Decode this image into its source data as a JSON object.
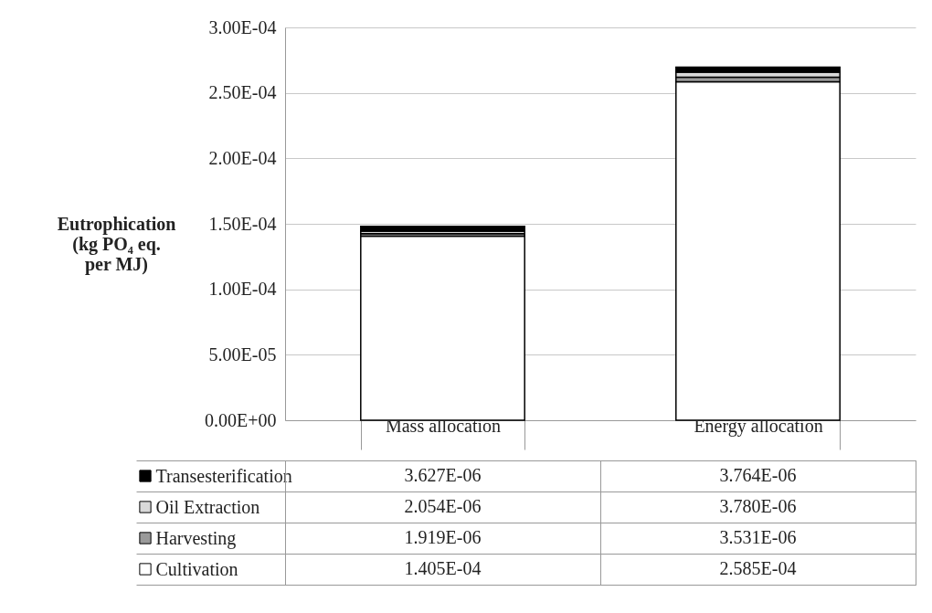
{
  "chart_data": {
    "type": "bar",
    "stacked": true,
    "ylabel": "Eutrophication\n(kg PO₄ eq.\nper MJ)",
    "categories": [
      "Mass allocation",
      "Energy allocation"
    ],
    "series": [
      {
        "name": "Cultivation",
        "color": "#ffffff",
        "values": [
          0.0001405,
          0.0002585
        ],
        "value_labels": [
          "1.405E-04",
          "2.585E-04"
        ]
      },
      {
        "name": "Harvesting",
        "color": "#9a9a9a",
        "values": [
          1.919e-06,
          3.531e-06
        ],
        "value_labels": [
          "1.919E-06",
          "3.531E-06"
        ]
      },
      {
        "name": "Oil Extraction",
        "color": "#d9d9d9",
        "values": [
          2.054e-06,
          3.78e-06
        ],
        "value_labels": [
          "2.054E-06",
          "3.780E-06"
        ]
      },
      {
        "name": "Transesterification",
        "color": "#000000",
        "values": [
          3.627e-06,
          3.764e-06
        ],
        "value_labels": [
          "3.627E-06",
          "3.764E-06"
        ]
      }
    ],
    "ylim": [
      0,
      0.0003
    ],
    "yticks": [
      {
        "value": 0,
        "label": "0.00E+00"
      },
      {
        "value": 5e-05,
        "label": "5.00E-05"
      },
      {
        "value": 0.0001,
        "label": "1.00E-04"
      },
      {
        "value": 0.00015,
        "label": "1.50E-04"
      },
      {
        "value": 0.0002,
        "label": "2.00E-04"
      },
      {
        "value": 0.00025,
        "label": "2.50E-04"
      },
      {
        "value": 0.0003,
        "label": "3.00E-04"
      }
    ],
    "grid": "y",
    "legend": "bottom"
  }
}
